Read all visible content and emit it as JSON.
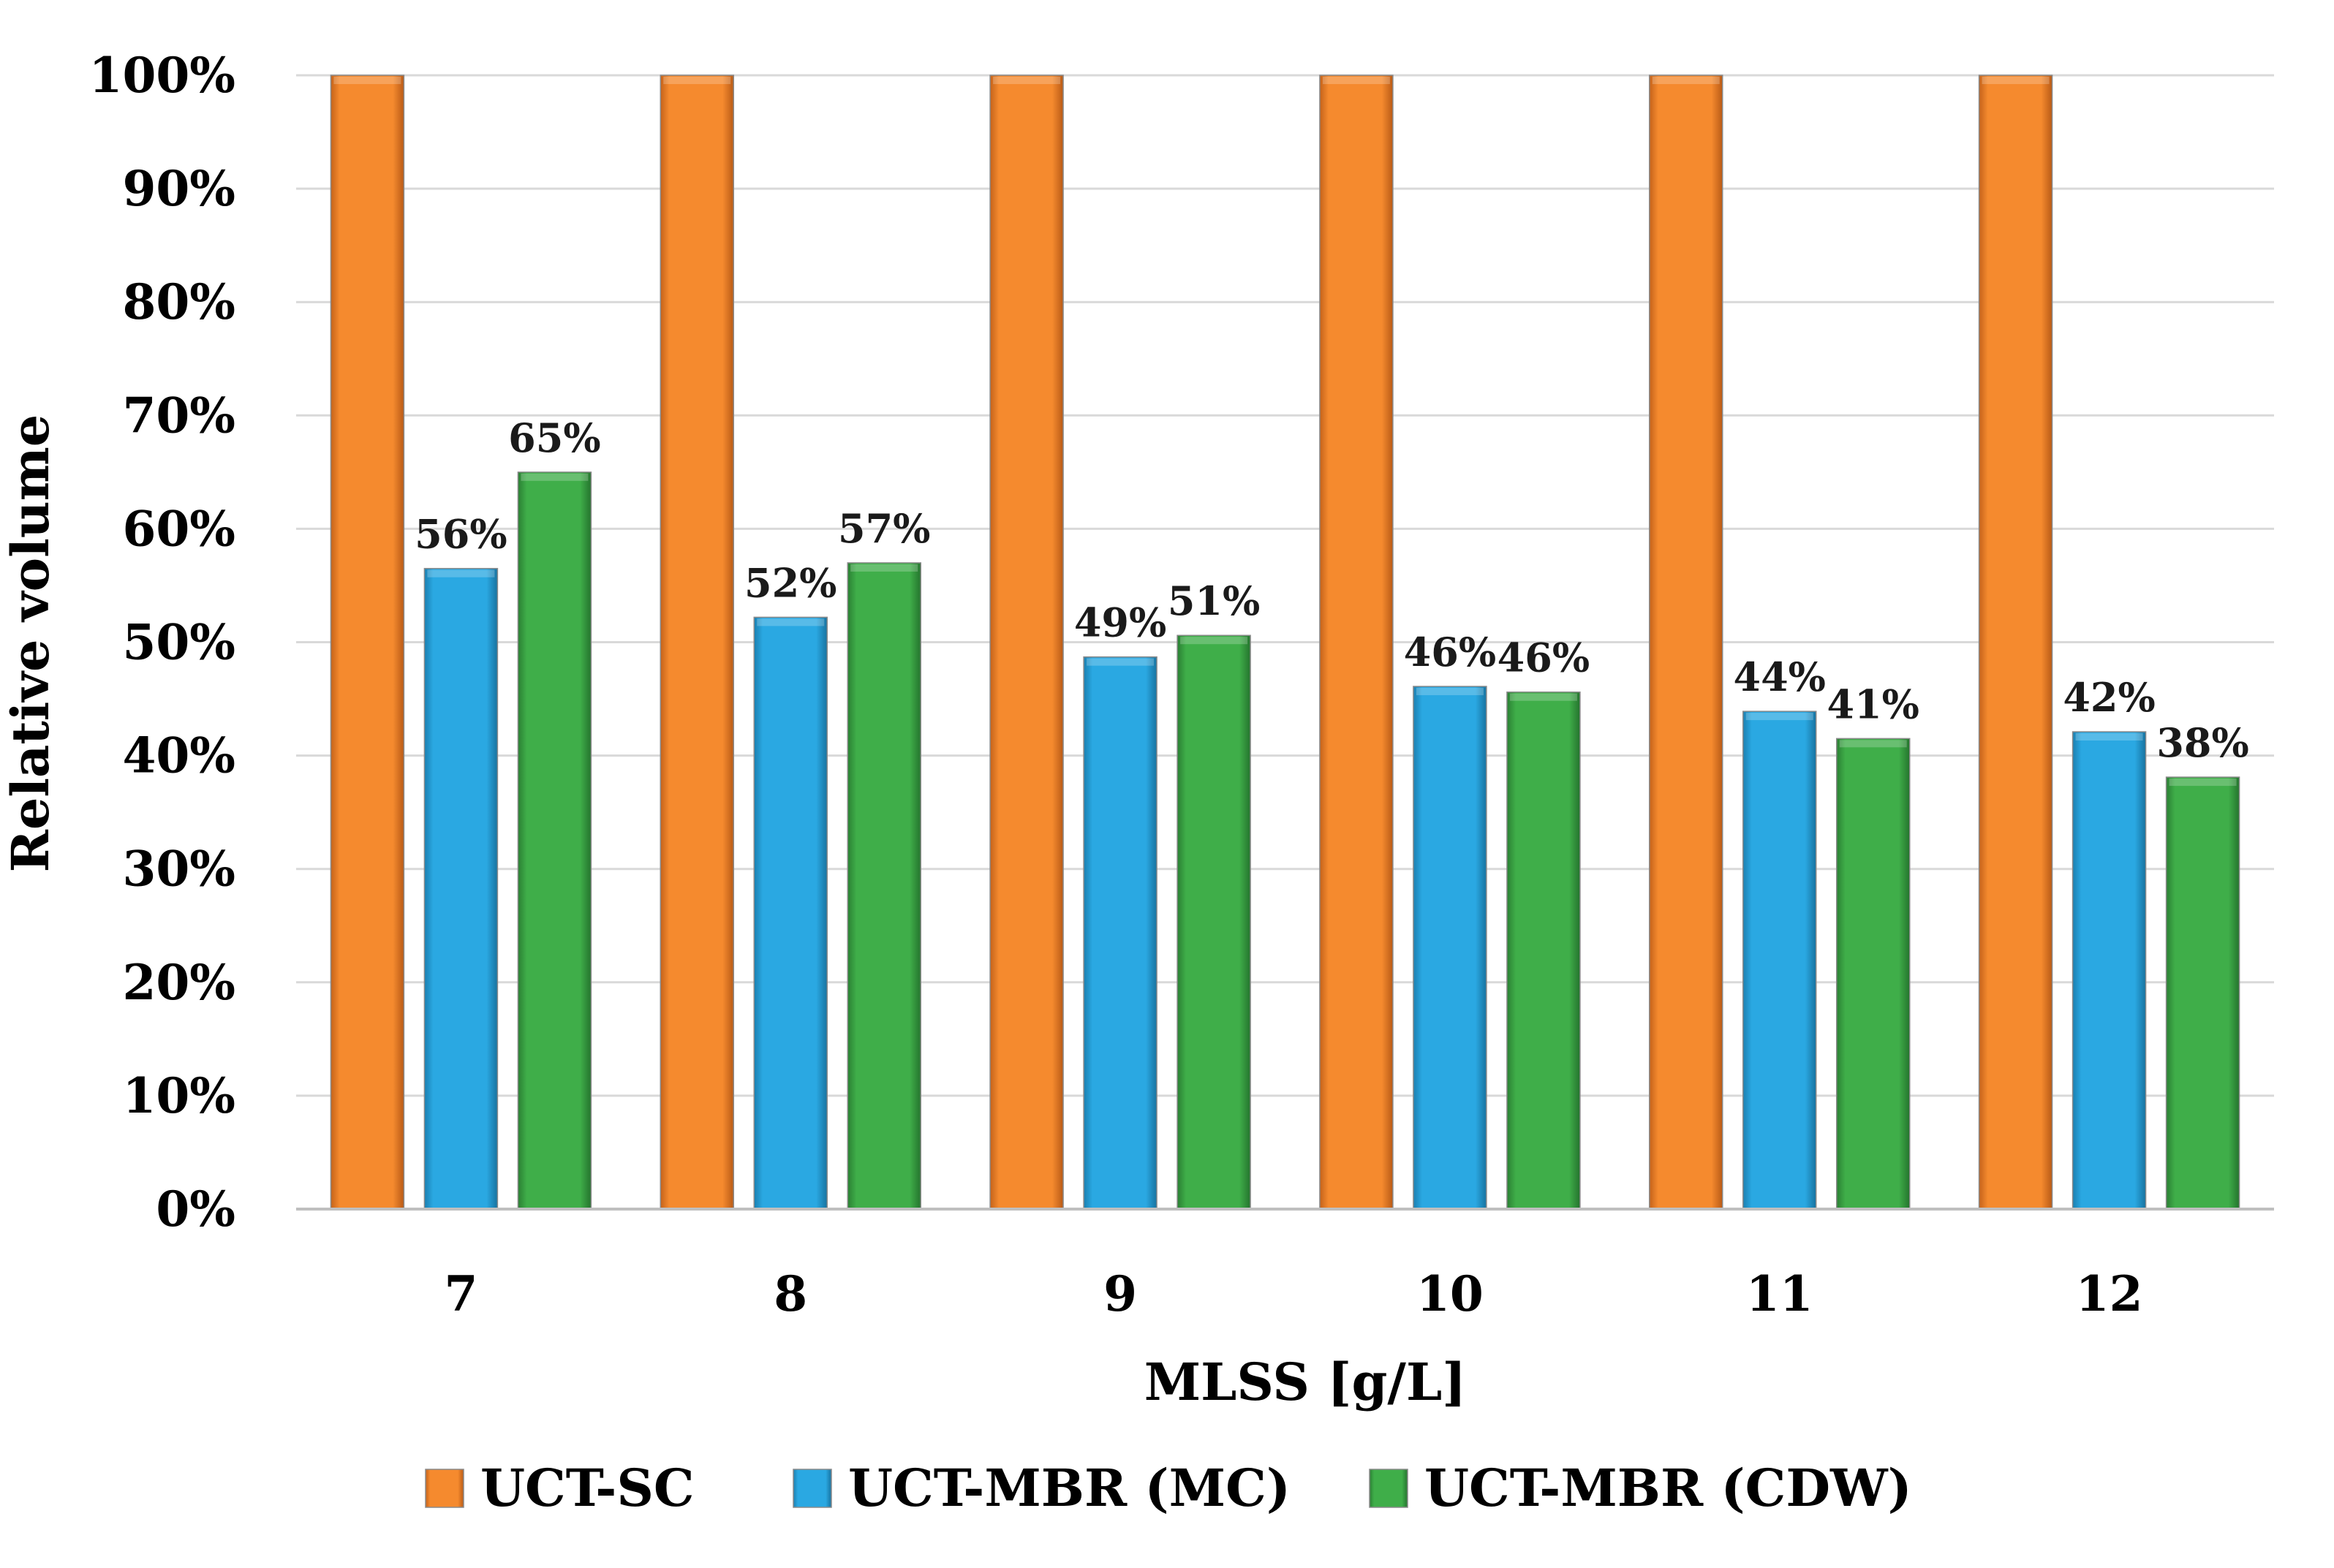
{
  "chart_data": {
    "type": "bar",
    "title": "",
    "xlabel": "MLSS [g/L]",
    "ylabel": "Relative volume",
    "ylim": [
      0,
      100
    ],
    "y_ticks": [
      "0%",
      "10%",
      "20%",
      "30%",
      "40%",
      "50%",
      "60%",
      "70%",
      "80%",
      "90%",
      "100%"
    ],
    "y_tick_values": [
      0,
      10,
      20,
      30,
      40,
      50,
      60,
      70,
      80,
      90,
      100
    ],
    "grid": true,
    "legend_position": "bottom",
    "categories": [
      "7",
      "8",
      "9",
      "10",
      "11",
      "12"
    ],
    "series": [
      {
        "name": "UCT-SC",
        "color": "#f58a2e",
        "values": [
          100,
          100,
          100,
          100,
          100,
          100
        ],
        "labels": [
          "",
          "",
          "",
          "",
          "",
          ""
        ]
      },
      {
        "name": "UCT-MBR (MC)",
        "color": "#2aa8e2",
        "values": [
          56.5,
          52.2,
          48.7,
          46.1,
          43.9,
          42.1
        ],
        "labels": [
          "56%",
          "52%",
          "49%",
          "46%",
          "44%",
          "42%"
        ]
      },
      {
        "name": "UCT-MBR (CDW)",
        "color": "#3fae49",
        "values": [
          65.0,
          57.0,
          50.6,
          45.6,
          41.5,
          38.1
        ],
        "labels": [
          "65%",
          "57%",
          "51%",
          "46%",
          "41%",
          "38%"
        ]
      }
    ]
  }
}
